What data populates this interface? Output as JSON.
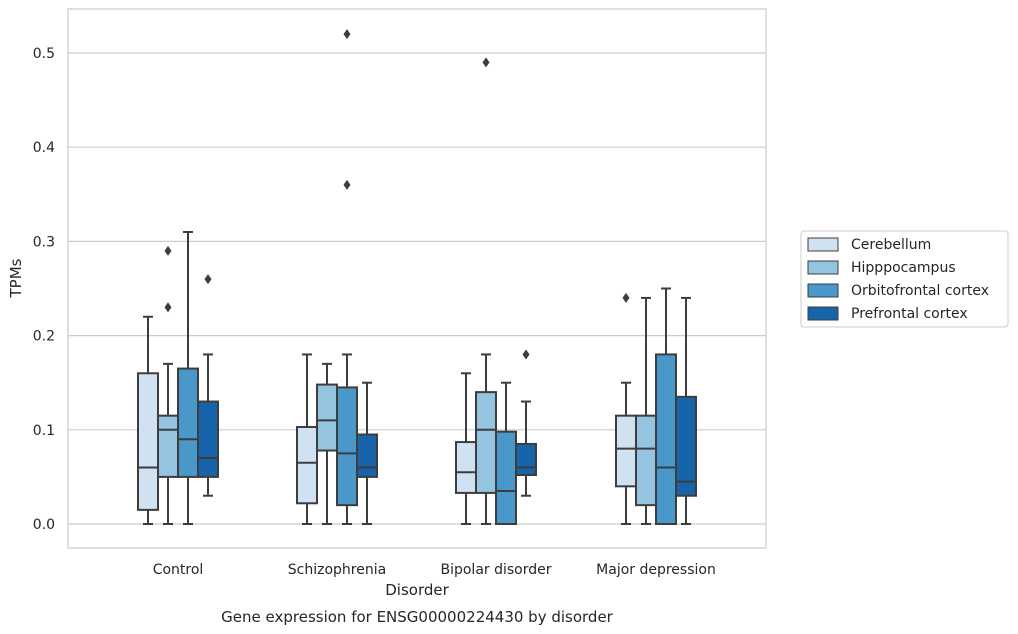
{
  "chart_data": {
    "type": "boxplot",
    "title": "",
    "caption": "Gene expression for ENSG00000224430 by disorder",
    "xlabel": "Disorder",
    "ylabel": "TPMs",
    "ylim": [
      -0.025,
      0.548
    ],
    "yticks": [
      0.0,
      0.1,
      0.2,
      0.3,
      0.4,
      0.5
    ],
    "ytick_labels": [
      "0.0",
      "0.1",
      "0.2",
      "0.3",
      "0.4",
      "0.5"
    ],
    "categories": [
      "Control",
      "Schizophrenia",
      "Bipolar disorder",
      "Major depression"
    ],
    "grid": "horizontal",
    "legend_position": "right",
    "series": [
      {
        "name": "Cerebellum",
        "color": "#d0e1f2",
        "boxes": [
          {
            "whisker_low": 0.0,
            "q1": 0.015,
            "median": 0.06,
            "q3": 0.16,
            "whisker_high": 0.22,
            "outliers": []
          },
          {
            "whisker_low": 0.0,
            "q1": 0.022,
            "median": 0.065,
            "q3": 0.103,
            "whisker_high": 0.18,
            "outliers": []
          },
          {
            "whisker_low": 0.0,
            "q1": 0.033,
            "median": 0.055,
            "q3": 0.087,
            "whisker_high": 0.16,
            "outliers": []
          },
          {
            "whisker_low": 0.0,
            "q1": 0.04,
            "median": 0.08,
            "q3": 0.115,
            "whisker_high": 0.15,
            "outliers": [
              0.24
            ]
          }
        ]
      },
      {
        "name": "Hipppocampus",
        "color": "#94c4df",
        "boxes": [
          {
            "whisker_low": 0.0,
            "q1": 0.05,
            "median": 0.1,
            "q3": 0.115,
            "whisker_high": 0.17,
            "outliers": [
              0.23,
              0.29
            ]
          },
          {
            "whisker_low": 0.0,
            "q1": 0.078,
            "median": 0.11,
            "q3": 0.148,
            "whisker_high": 0.17,
            "outliers": []
          },
          {
            "whisker_low": 0.0,
            "q1": 0.033,
            "median": 0.1,
            "q3": 0.14,
            "whisker_high": 0.18,
            "outliers": [
              0.49
            ]
          },
          {
            "whisker_low": 0.0,
            "q1": 0.02,
            "median": 0.08,
            "q3": 0.115,
            "whisker_high": 0.24,
            "outliers": []
          }
        ]
      },
      {
        "name": "Orbitofrontal cortex",
        "color": "#4a98c9",
        "boxes": [
          {
            "whisker_low": 0.0,
            "q1": 0.05,
            "median": 0.09,
            "q3": 0.165,
            "whisker_high": 0.31,
            "outliers": []
          },
          {
            "whisker_low": 0.0,
            "q1": 0.02,
            "median": 0.075,
            "q3": 0.145,
            "whisker_high": 0.18,
            "outliers": [
              0.36,
              0.52
            ]
          },
          {
            "whisker_low": 0.0,
            "q1": 0.0,
            "median": 0.035,
            "q3": 0.098,
            "whisker_high": 0.15,
            "outliers": []
          },
          {
            "whisker_low": 0.0,
            "q1": 0.0,
            "median": 0.06,
            "q3": 0.18,
            "whisker_high": 0.25,
            "outliers": []
          }
        ]
      },
      {
        "name": "Prefrontal cortex",
        "color": "#1764ab",
        "boxes": [
          {
            "whisker_low": 0.03,
            "q1": 0.05,
            "median": 0.07,
            "q3": 0.13,
            "whisker_high": 0.18,
            "outliers": [
              0.26
            ]
          },
          {
            "whisker_low": 0.0,
            "q1": 0.05,
            "median": 0.06,
            "q3": 0.095,
            "whisker_high": 0.15,
            "outliers": []
          },
          {
            "whisker_low": 0.03,
            "q1": 0.052,
            "median": 0.06,
            "q3": 0.085,
            "whisker_high": 0.13,
            "outliers": [
              0.18
            ]
          },
          {
            "whisker_low": 0.0,
            "q1": 0.03,
            "median": 0.045,
            "q3": 0.135,
            "whisker_high": 0.24,
            "outliers": []
          }
        ]
      }
    ]
  }
}
